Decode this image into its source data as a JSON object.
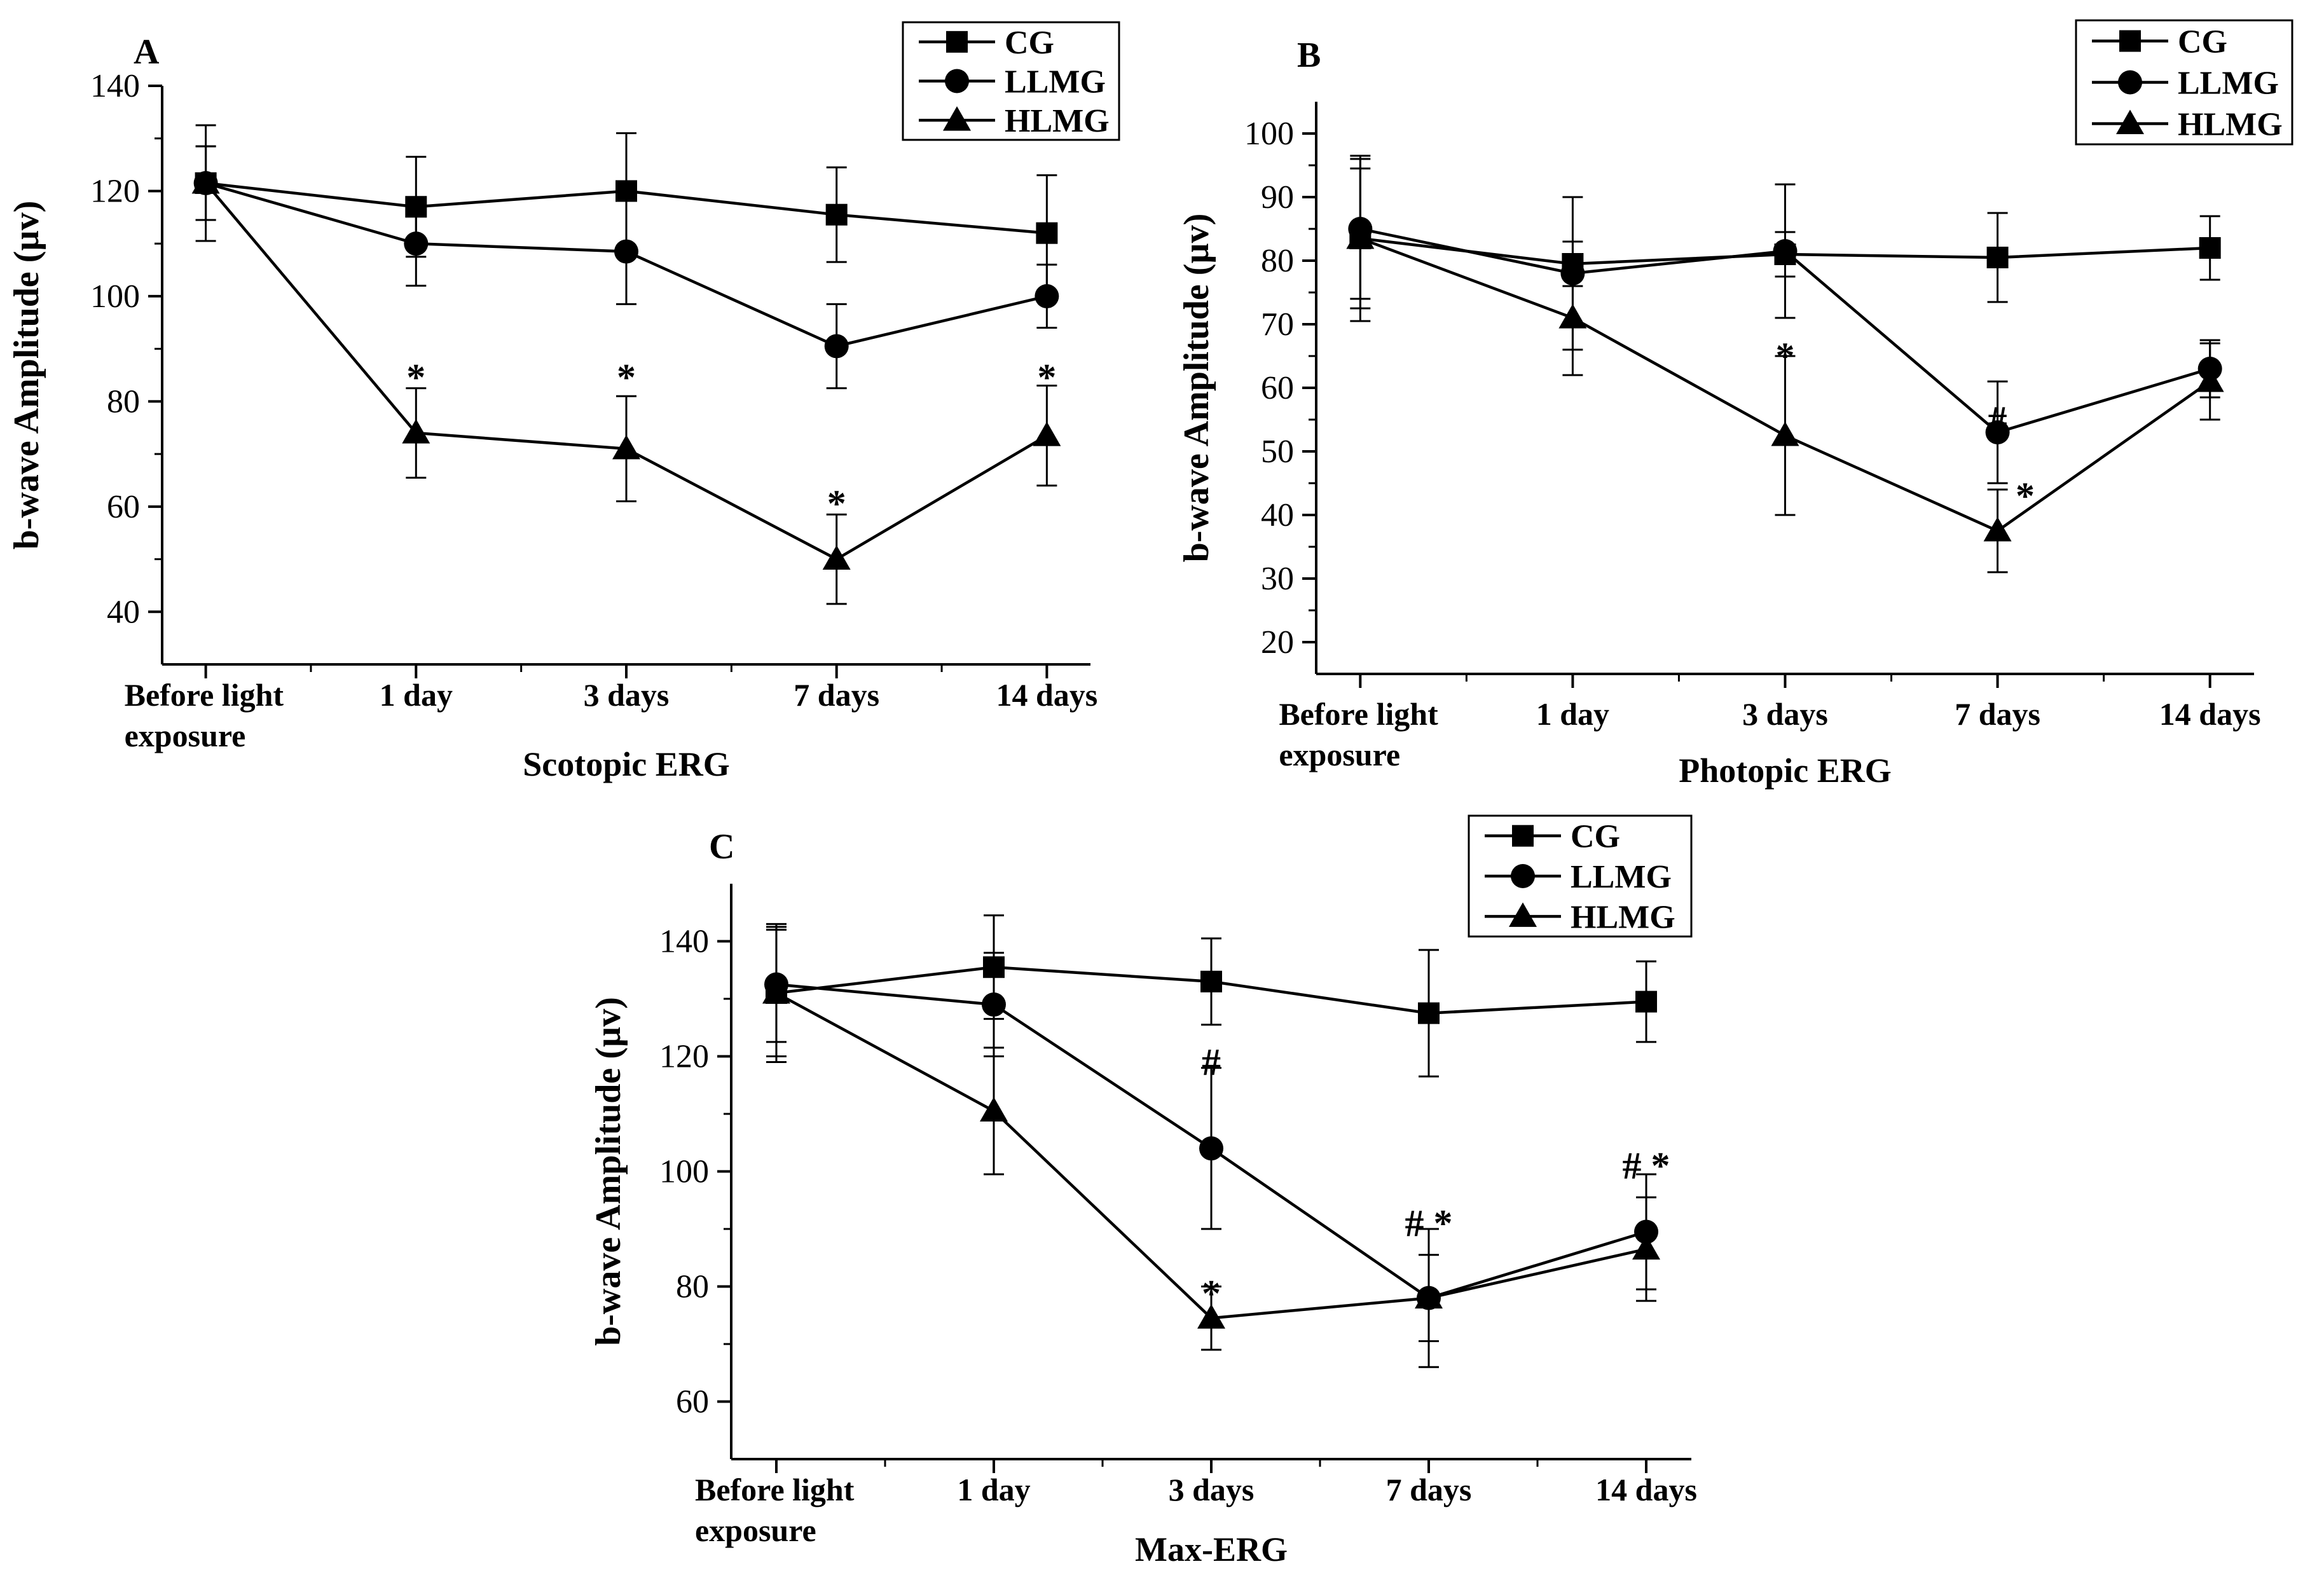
{
  "chart_data": [
    {
      "type": "line",
      "panel_label": "A",
      "title": "",
      "xlabel": "Scotopic ERG",
      "ylabel": "b-wave Amplitude (µv)",
      "categories": [
        [
          "Before light",
          "exposure"
        ],
        [
          "1 day"
        ],
        [
          "3 days"
        ],
        [
          "7 days"
        ],
        [
          "14 days"
        ]
      ],
      "ylim": [
        30,
        140
      ],
      "yticks": [
        40,
        60,
        80,
        100,
        120,
        140
      ],
      "grid": false,
      "legend_position": "top-right",
      "series": [
        {
          "name": "CG",
          "marker": "square",
          "values": [
            121.5,
            117,
            120,
            115.5,
            112
          ],
          "errors": [
            7,
            9.5,
            11,
            9,
            11
          ]
        },
        {
          "name": "LLMG",
          "marker": "circle",
          "values": [
            121.5,
            110,
            108.5,
            90.5,
            100
          ],
          "errors": [
            7,
            8,
            10,
            8,
            6
          ]
        },
        {
          "name": "HLMG",
          "marker": "triangle",
          "values": [
            121.5,
            74,
            71,
            50,
            73.5
          ],
          "errors": [
            11,
            8.5,
            10,
            8.5,
            9.5
          ]
        }
      ],
      "annotations": [
        {
          "category": 1,
          "value": 87,
          "text": "*"
        },
        {
          "category": 2,
          "value": 87,
          "text": "*"
        },
        {
          "category": 3,
          "value": 63,
          "text": "*"
        },
        {
          "category": 4,
          "value": 87,
          "text": "*"
        }
      ]
    },
    {
      "type": "line",
      "panel_label": "B",
      "title": "",
      "xlabel": "Photopic ERG",
      "ylabel": "b-wave Amplitude (µv)",
      "categories": [
        [
          "Before light",
          "exposure"
        ],
        [
          "1 day"
        ],
        [
          "3 days"
        ],
        [
          "7 days"
        ],
        [
          "14 days"
        ]
      ],
      "ylim": [
        15,
        105
      ],
      "yticks": [
        20,
        30,
        40,
        50,
        60,
        70,
        80,
        90,
        100
      ],
      "grid": false,
      "legend_position": "top-right",
      "series": [
        {
          "name": "CG",
          "marker": "square",
          "values": [
            83.5,
            79.5,
            81,
            80.5,
            82
          ],
          "errors": [
            11,
            3.5,
            3.5,
            7,
            5
          ]
        },
        {
          "name": "LLMG",
          "marker": "circle",
          "values": [
            85,
            78,
            81.5,
            53,
            63
          ],
          "errors": [
            11,
            12,
            10.5,
            8,
            4.5
          ]
        },
        {
          "name": "HLMG",
          "marker": "triangle",
          "values": [
            83.5,
            71,
            52.5,
            37.5,
            61
          ],
          "errors": [
            13,
            9,
            12.5,
            6.5,
            6
          ]
        }
      ],
      "annotations": [
        {
          "category": 2,
          "value": 67,
          "text": "*"
        },
        {
          "category": 3,
          "value": 55,
          "text": "#"
        },
        {
          "category": 3.13,
          "value": 45,
          "text": "*"
        }
      ]
    },
    {
      "type": "line",
      "panel_label": "C",
      "title": "",
      "xlabel": "Max-ERG",
      "ylabel": "b-wave Amplitude (µv)",
      "categories": [
        [
          "Before light",
          "exposure"
        ],
        [
          "1 day"
        ],
        [
          "3 days"
        ],
        [
          "7 days"
        ],
        [
          "14 days"
        ]
      ],
      "ylim": [
        50,
        150
      ],
      "yticks": [
        60,
        80,
        100,
        120,
        140
      ],
      "grid": false,
      "legend_position": "top-right",
      "series": [
        {
          "name": "CG",
          "marker": "square",
          "values": [
            131,
            135.5,
            133,
            127.5,
            129.5
          ],
          "errors": [
            11,
            9,
            7.5,
            11,
            7
          ]
        },
        {
          "name": "LLMG",
          "marker": "circle",
          "values": [
            132.5,
            129,
            104,
            78,
            89.5
          ],
          "errors": [
            10,
            9,
            14,
            12,
            10
          ]
        },
        {
          "name": "HLMG",
          "marker": "triangle",
          "values": [
            131,
            110.5,
            74.5,
            78,
            86.5
          ],
          "errors": [
            12,
            11,
            5.5,
            7.5,
            9
          ]
        }
      ],
      "annotations": [
        {
          "category": 2,
          "value": 119,
          "text": "#"
        },
        {
          "category": 2,
          "value": 81,
          "text": "*"
        },
        {
          "category": 3,
          "value": 91,
          "text": "# *"
        },
        {
          "category": 4,
          "value": 101,
          "text": "# *"
        }
      ]
    }
  ]
}
